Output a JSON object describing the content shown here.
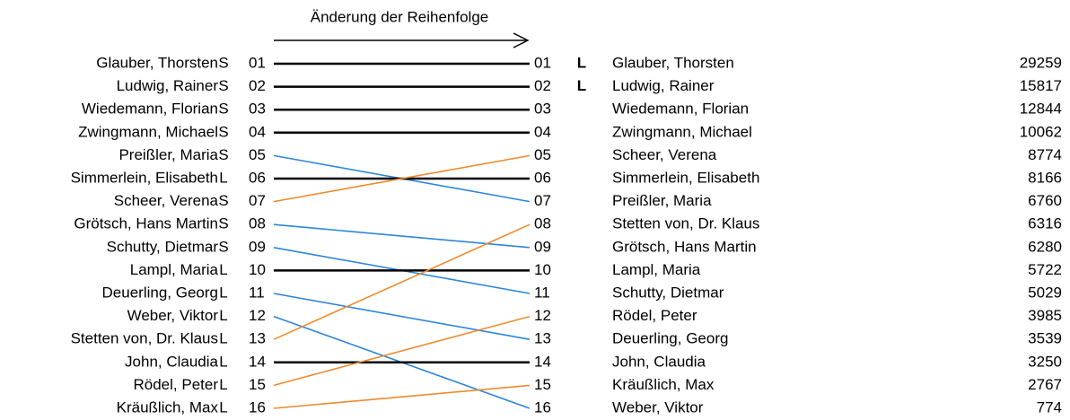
{
  "title": "Änderung der Reihenfolge",
  "line_colors": {
    "same": "#000000",
    "down": "#2e86d8",
    "up": "#ee8a2e"
  },
  "left": [
    {
      "name": "Glauber, Thorsten",
      "group": "S",
      "rank": "01"
    },
    {
      "name": "Ludwig, Rainer",
      "group": "S",
      "rank": "02"
    },
    {
      "name": "Wiedemann, Florian",
      "group": "S",
      "rank": "03"
    },
    {
      "name": "Zwingmann, Michael",
      "group": "S",
      "rank": "04"
    },
    {
      "name": "Preißler, Maria",
      "group": "S",
      "rank": "05"
    },
    {
      "name": "Simmerlein, Elisabeth",
      "group": "L",
      "rank": "06"
    },
    {
      "name": "Scheer, Verena",
      "group": "S",
      "rank": "07"
    },
    {
      "name": "Grötsch, Hans Martin",
      "group": "S",
      "rank": "08"
    },
    {
      "name": "Schutty, Dietmar",
      "group": "S",
      "rank": "09"
    },
    {
      "name": "Lampl, Maria",
      "group": "L",
      "rank": "10"
    },
    {
      "name": "Deuerling, Georg",
      "group": "L",
      "rank": "11"
    },
    {
      "name": "Weber, Viktor",
      "group": "L",
      "rank": "12"
    },
    {
      "name": "Stetten von, Dr. Klaus",
      "group": "L",
      "rank": "13"
    },
    {
      "name": "John, Claudia",
      "group": "L",
      "rank": "14"
    },
    {
      "name": "Rödel, Peter",
      "group": "L",
      "rank": "15"
    },
    {
      "name": "Kräußlich, Max",
      "group": "L",
      "rank": "16"
    }
  ],
  "right": [
    {
      "rank": "01",
      "flag": "L",
      "name": "Glauber, Thorsten",
      "value": 29259
    },
    {
      "rank": "02",
      "flag": "L",
      "name": "Ludwig, Rainer",
      "value": 15817
    },
    {
      "rank": "03",
      "name": "Wiedemann, Florian",
      "value": 12844
    },
    {
      "rank": "04",
      "name": "Zwingmann, Michael",
      "value": 10062
    },
    {
      "rank": "05",
      "name": "Scheer, Verena",
      "value": 8774
    },
    {
      "rank": "06",
      "name": "Simmerlein, Elisabeth",
      "value": 8166
    },
    {
      "rank": "07",
      "name": "Preißler, Maria",
      "value": 6760
    },
    {
      "rank": "08",
      "name": "Stetten von, Dr. Klaus",
      "value": 6316
    },
    {
      "rank": "09",
      "name": "Grötsch, Hans Martin",
      "value": 6280
    },
    {
      "rank": "10",
      "name": "Lampl, Maria",
      "value": 5722
    },
    {
      "rank": "11",
      "name": "Schutty, Dietmar",
      "value": 5029
    },
    {
      "rank": "12",
      "name": "Rödel, Peter",
      "value": 3985
    },
    {
      "rank": "13",
      "name": "Deuerling, Georg",
      "value": 3539
    },
    {
      "rank": "14",
      "name": "John, Claudia",
      "value": 3250
    },
    {
      "rank": "15",
      "name": "Kräußlich, Max",
      "value": 2767
    },
    {
      "rank": "16",
      "name": "Weber, Viktor",
      "value": 774
    }
  ]
}
